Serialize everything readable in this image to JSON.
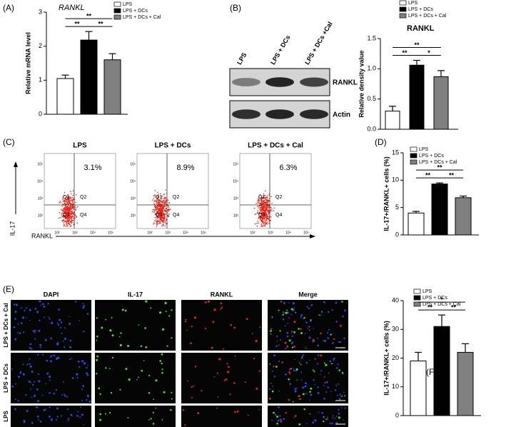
{
  "panels": [
    "(A)",
    "(B)",
    "(C)",
    "(D)",
    "(E)",
    "(F)"
  ],
  "chart_data": [
    {
      "type": "bar",
      "title": "RANKL",
      "ylabel": "Relative mRNA level",
      "series": [
        {
          "name": "LPS",
          "color": "#ffffff",
          "values": [
            1.05
          ],
          "errors": [
            0.1
          ]
        },
        {
          "name": "LPS + DCs",
          "color": "#000000",
          "values": [
            2.18
          ],
          "errors": [
            0.25
          ]
        },
        {
          "name": "LPS + DCs + Cal",
          "color": "#808080",
          "values": [
            1.6
          ],
          "errors": [
            0.18
          ]
        }
      ],
      "ylim": [
        0,
        3
      ],
      "yticks": [
        0,
        1,
        2,
        3
      ],
      "annotations": [
        "**",
        "**",
        "**"
      ]
    },
    {
      "type": "bar",
      "title": "RANKL",
      "ylabel": "Relative density value",
      "series": [
        {
          "name": "LPS",
          "color": "#ffffff",
          "values": [
            0.3
          ],
          "errors": [
            0.08
          ]
        },
        {
          "name": "LPS + DCs",
          "color": "#000000",
          "values": [
            1.06
          ],
          "errors": [
            0.08
          ]
        },
        {
          "name": "LPS + DCs + Cal",
          "color": "#808080",
          "values": [
            0.87
          ],
          "errors": [
            0.1
          ]
        }
      ],
      "ylim": [
        0,
        1.5
      ],
      "yticks": [
        {
          "value": 0,
          "label": "0.0"
        },
        {
          "value": 0.5,
          "label": "0.5"
        },
        {
          "value": 1,
          "label": "1.0"
        },
        {
          "value": 1.5,
          "label": "1.5"
        }
      ],
      "annotations": [
        "**",
        "**",
        "*"
      ]
    },
    {
      "type": "bar",
      "ylabel": "IL-17+/RANKL+ cells (%)",
      "series": [
        {
          "name": "LPS",
          "color": "#ffffff",
          "values": [
            4.0
          ],
          "errors": [
            0.3
          ]
        },
        {
          "name": "LPS + DCs",
          "color": "#000000",
          "values": [
            9.3
          ],
          "errors": [
            0.2
          ]
        },
        {
          "name": "LPS + DCs + Cal",
          "color": "#808080",
          "values": [
            6.8
          ],
          "errors": [
            0.3
          ]
        }
      ],
      "ylim": [
        0,
        15
      ],
      "yticks": [
        0,
        5,
        10,
        15
      ],
      "annotations": [
        "**",
        "**",
        "**"
      ]
    },
    {
      "type": "bar",
      "ylabel": "IL-17+/RANKL+ cells (%)",
      "series": [
        {
          "name": "LPS",
          "color": "#ffffff",
          "values": [
            19
          ],
          "errors": [
            3
          ]
        },
        {
          "name": "LPS + DCs",
          "color": "#000000",
          "values": [
            31
          ],
          "errors": [
            4
          ]
        },
        {
          "name": "LPS + DCs + Cal",
          "color": "#808080",
          "values": [
            22
          ],
          "errors": [
            3
          ]
        }
      ],
      "ylim": [
        0,
        40
      ],
      "yticks": [
        0,
        10,
        20,
        30,
        40
      ],
      "annotations": [
        "*",
        "**",
        "**"
      ]
    }
  ],
  "blot": {
    "lanes": [
      "LPS",
      "LPS + DCs",
      "LPS + DCs +Cal"
    ],
    "bands": [
      "RANKL",
      "Actin"
    ]
  },
  "flow": {
    "plots": [
      {
        "title": "LPS",
        "percent": "3.1%"
      },
      {
        "title": "LPS + DCs",
        "percent": "8.9%"
      },
      {
        "title": "LPS + DCs + Cal",
        "percent": "6.3%"
      }
    ],
    "quadrants": [
      "Q1",
      "Q2",
      "Q3",
      "Q4"
    ],
    "ticks": [
      "10²",
      "10³",
      "10⁴",
      "10⁵"
    ],
    "y_label": "IL-17",
    "x_label": "RANKL"
  },
  "microscopy": {
    "columns": [
      "DAPI",
      "IL-17",
      "RANKL",
      "Merge"
    ],
    "rows": [
      "LPS + DCs + Cal",
      "LPS + DCs",
      "LPS"
    ],
    "scale_bar": "100 μm"
  }
}
